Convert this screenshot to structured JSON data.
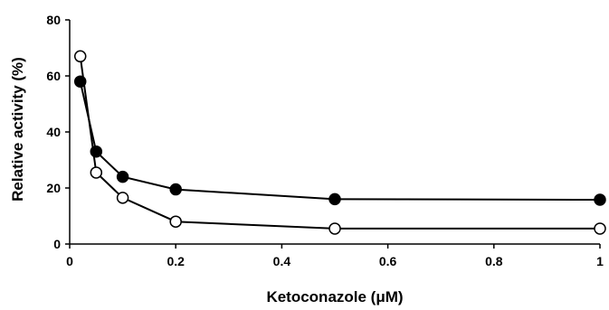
{
  "chart_data": {
    "type": "line",
    "title": "",
    "xlabel": "Ketoconazole (μM)",
    "ylabel": "Relative activity (%)",
    "xlim": [
      0,
      1
    ],
    "ylim": [
      0,
      80
    ],
    "x_ticks": [
      "0",
      "0.2",
      "0.4",
      "0.6",
      "0.8",
      "1"
    ],
    "y_ticks": [
      "0",
      "20",
      "40",
      "60",
      "80"
    ],
    "grid": false,
    "legend": "none",
    "series": [
      {
        "marker": "filled-circle",
        "color": "#000000",
        "x": [
          0.02,
          0.05,
          0.1,
          0.2,
          0.5,
          1.0
        ],
        "y": [
          58,
          33,
          24,
          19.5,
          16,
          15.8
        ]
      },
      {
        "marker": "open-circle",
        "color": "#000000",
        "x": [
          0.02,
          0.05,
          0.1,
          0.2,
          0.5,
          1.0
        ],
        "y": [
          67,
          25.5,
          16.5,
          8,
          5.5,
          5.5
        ]
      }
    ]
  }
}
